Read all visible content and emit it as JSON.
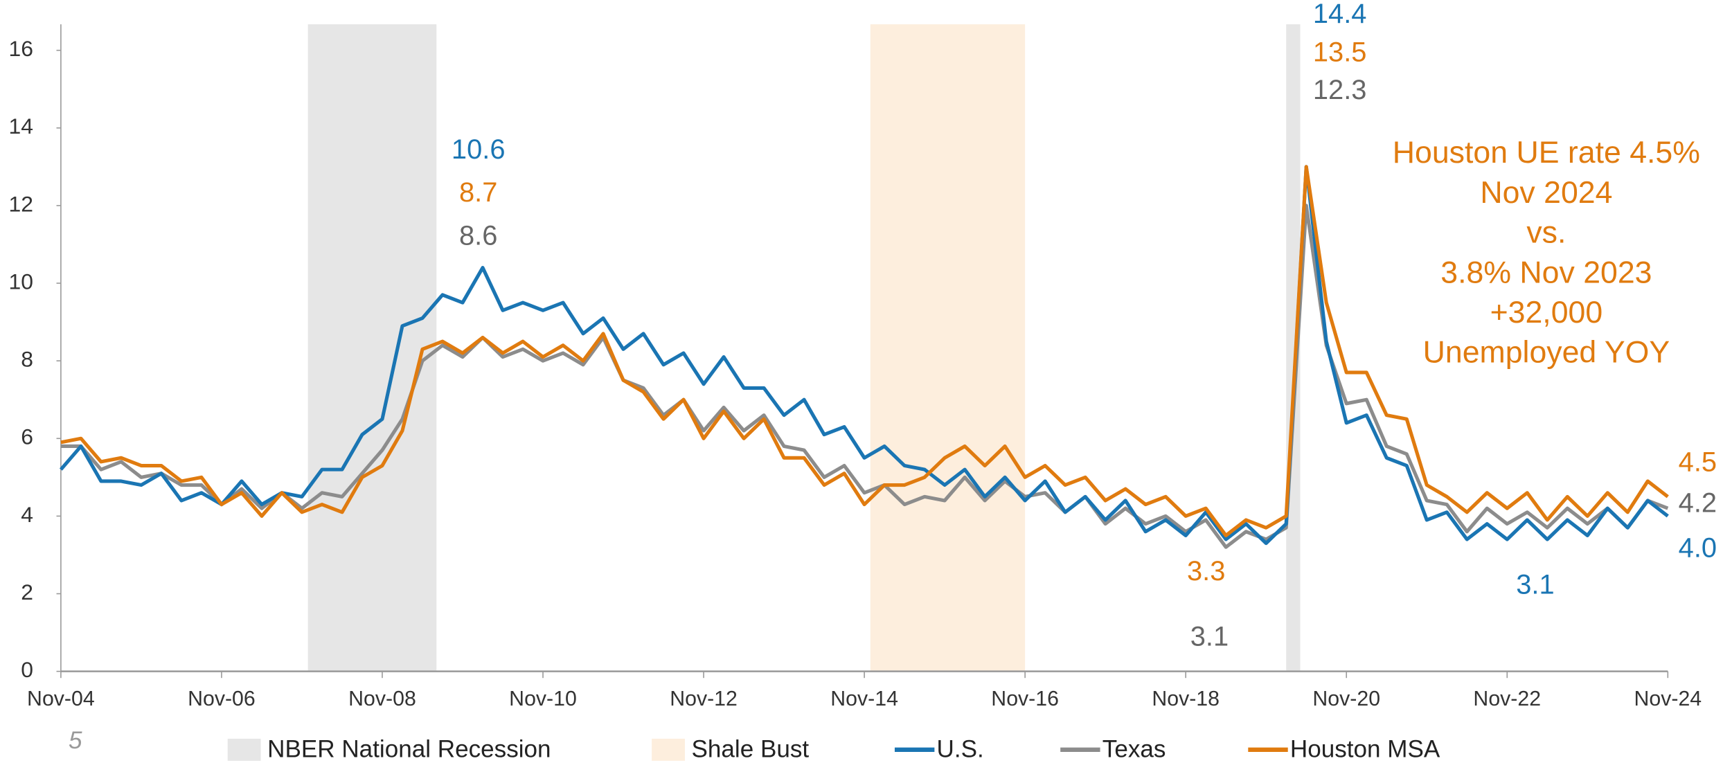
{
  "chart_data": {
    "type": "line",
    "categories": [
      "Nov-04",
      null,
      null,
      null,
      null,
      null,
      null,
      null,
      "Nov-06",
      null,
      null,
      null,
      null,
      null,
      null,
      null,
      "Nov-08",
      null,
      null,
      null,
      null,
      null,
      null,
      null,
      "Nov-10",
      null,
      null,
      null,
      null,
      null,
      null,
      null,
      "Nov-12",
      null,
      null,
      null,
      null,
      null,
      null,
      null,
      "Nov-14",
      null,
      null,
      null,
      null,
      null,
      null,
      null,
      "Nov-16",
      null,
      null,
      null,
      null,
      null,
      null,
      null,
      "Nov-18",
      null,
      null,
      null,
      null,
      null,
      null,
      null,
      "Nov-20",
      null,
      null,
      null,
      null,
      null,
      null,
      null,
      "Nov-22",
      null,
      null,
      null,
      null,
      null,
      null,
      null,
      "Nov-24"
    ],
    "series": [
      {
        "name": "U.S.",
        "color": "#1a75b3",
        "values": [
          5.2,
          5.8,
          4.9,
          4.9,
          4.8,
          5.1,
          4.4,
          4.6,
          4.3,
          4.9,
          4.3,
          4.6,
          4.5,
          5.2,
          5.2,
          6.1,
          6.5,
          8.9,
          9.1,
          9.7,
          9.5,
          10.4,
          9.3,
          9.5,
          9.3,
          9.5,
          8.7,
          9.1,
          8.3,
          8.7,
          7.9,
          8.2,
          7.4,
          8.1,
          7.3,
          7.3,
          6.6,
          7.0,
          6.1,
          6.3,
          5.5,
          5.8,
          5.3,
          5.2,
          4.8,
          5.2,
          4.5,
          5.0,
          4.4,
          4.9,
          4.1,
          4.5,
          3.9,
          4.4,
          3.6,
          3.9,
          3.5,
          4.1,
          3.4,
          3.8,
          3.3,
          3.8,
          13.0,
          8.5,
          6.4,
          6.6,
          5.5,
          5.3,
          3.9,
          4.1,
          3.4,
          3.8,
          3.4,
          3.9,
          3.4,
          3.9,
          3.5,
          4.2,
          3.7,
          4.4,
          4.0
        ]
      },
      {
        "name": "Texas",
        "color": "#8c8c8c",
        "values": [
          5.8,
          5.8,
          5.2,
          5.4,
          5.0,
          5.1,
          4.8,
          4.8,
          4.3,
          4.7,
          4.2,
          4.6,
          4.2,
          4.6,
          4.5,
          5.1,
          5.7,
          6.5,
          8.0,
          8.4,
          8.1,
          8.6,
          8.1,
          8.3,
          8.0,
          8.2,
          7.9,
          8.6,
          7.5,
          7.3,
          6.6,
          7.0,
          6.2,
          6.8,
          6.2,
          6.6,
          5.8,
          5.7,
          5.0,
          5.3,
          4.6,
          4.8,
          4.3,
          4.5,
          4.4,
          5.0,
          4.4,
          4.9,
          4.5,
          4.6,
          4.1,
          4.5,
          3.8,
          4.2,
          3.8,
          4.0,
          3.6,
          3.9,
          3.2,
          3.6,
          3.4,
          3.7,
          12.0,
          8.4,
          6.9,
          7.0,
          5.8,
          5.6,
          4.4,
          4.3,
          3.6,
          4.2,
          3.8,
          4.1,
          3.7,
          4.2,
          3.8,
          4.2,
          3.7,
          4.4,
          4.2
        ]
      },
      {
        "name": "Houston MSA",
        "color": "#e07b0f",
        "values": [
          5.9,
          6.0,
          5.4,
          5.5,
          5.3,
          5.3,
          4.9,
          5.0,
          4.3,
          4.6,
          4.0,
          4.6,
          4.1,
          4.3,
          4.1,
          5.0,
          5.3,
          6.2,
          8.3,
          8.5,
          8.2,
          8.6,
          8.2,
          8.5,
          8.1,
          8.4,
          8.0,
          8.7,
          7.5,
          7.2,
          6.5,
          7.0,
          6.0,
          6.7,
          6.0,
          6.5,
          5.5,
          5.5,
          4.8,
          5.1,
          4.3,
          4.8,
          4.8,
          5.0,
          5.5,
          5.8,
          5.3,
          5.8,
          5.0,
          5.3,
          4.8,
          5.0,
          4.4,
          4.7,
          4.3,
          4.5,
          4.0,
          4.2,
          3.5,
          3.9,
          3.7,
          4.0,
          13.0,
          9.5,
          7.7,
          7.7,
          6.6,
          6.5,
          4.8,
          4.5,
          4.1,
          4.6,
          4.2,
          4.6,
          3.9,
          4.5,
          4.0,
          4.6,
          4.1,
          4.9,
          4.5
        ]
      }
    ],
    "shading": [
      {
        "name": "NBER National Recession",
        "color": "#e6e6e6",
        "periods": [
          [
            12.3,
            18.7
          ],
          [
            61,
            61.7
          ]
        ]
      },
      {
        "name": "Shale Bust",
        "color": "#fdeedd",
        "periods": [
          [
            40.3,
            48
          ]
        ]
      }
    ],
    "ylim": [
      0,
      16.5
    ],
    "yticks": [
      0,
      2,
      4,
      6,
      8,
      10,
      12,
      14,
      16
    ],
    "annotations": [
      {
        "text": "10.6",
        "color": "#1a75b3"
      },
      {
        "text": "8.7",
        "color": "#e07b0f"
      },
      {
        "text": "8.6",
        "color": "#666666"
      },
      {
        "text": "14.4",
        "color": "#1a75b3"
      },
      {
        "text": "13.5",
        "color": "#e07b0f"
      },
      {
        "text": "12.3",
        "color": "#666666"
      },
      {
        "text": "3.3",
        "color": "#e07b0f"
      },
      {
        "text": "3.1",
        "color": "#666666"
      },
      {
        "text": "3.1",
        "color": "#1a75b3"
      },
      {
        "text": "4.5",
        "color": "#e07b0f"
      },
      {
        "text": "4.2",
        "color": "#666666"
      },
      {
        "text": "4.0",
        "color": "#1a75b3"
      }
    ],
    "callout": {
      "color": "#e07b0f",
      "lines": [
        "Houston UE rate 4.5%",
        "Nov 2024",
        "vs.",
        "3.8% Nov 2023",
        "+32,000",
        "Unemployed YOY"
      ]
    },
    "page_number": "5"
  }
}
